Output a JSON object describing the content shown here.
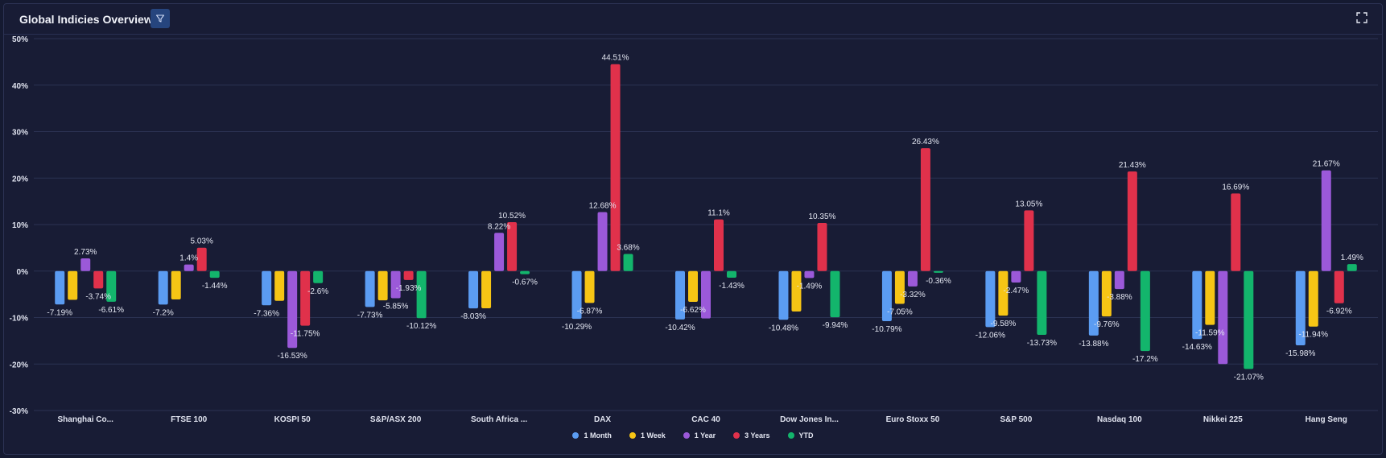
{
  "header": {
    "title": "Global Indicies Overview",
    "filter_icon": "filter-icon",
    "expand_icon": "expand-icon"
  },
  "chart_data": {
    "type": "bar",
    "categories": [
      "Shanghai Co...",
      "FTSE 100",
      "KOSPI 50",
      "S&P/ASX 200",
      "South Africa ...",
      "DAX",
      "CAC 40",
      "Dow Jones In...",
      "Euro Stoxx 50",
      "S&P 500",
      "Nasdaq 100",
      "Nikkei 225",
      "Hang Seng"
    ],
    "ylim": [
      -30,
      50
    ],
    "yticks": [
      "-30%",
      "-20%",
      "-10%",
      "0%",
      "10%",
      "20%",
      "30%",
      "40%",
      "50%"
    ],
    "grid": true,
    "legend_position": "bottom-center",
    "series": [
      {
        "name": "1 Month",
        "color": "#5b9cf2",
        "values": [
          -7.19,
          -7.2,
          -7.36,
          -7.73,
          -8.03,
          -10.29,
          -10.42,
          -10.48,
          -10.79,
          -12.06,
          -13.88,
          -14.63,
          -15.98
        ]
      },
      {
        "name": "1 Week",
        "color": "#f6c515",
        "values": [
          -6.2,
          -6.1,
          -6.4,
          -6.3,
          -8.0,
          -6.87,
          -6.62,
          -8.7,
          -7.05,
          -9.58,
          -9.76,
          -11.59,
          -11.94
        ]
      },
      {
        "name": "1 Year",
        "color": "#9b59d9",
        "values": [
          2.73,
          1.4,
          -16.53,
          -5.85,
          8.22,
          12.68,
          -10.2,
          -1.49,
          -3.32,
          -2.47,
          -3.88,
          -20.0,
          21.67
        ]
      },
      {
        "name": "3 Years",
        "color": "#e0314b",
        "values": [
          -3.74,
          5.03,
          -11.75,
          -1.93,
          10.52,
          44.51,
          11.1,
          10.35,
          26.43,
          13.05,
          21.43,
          16.69,
          -6.92
        ]
      },
      {
        "name": "YTD",
        "color": "#13b56c",
        "values": [
          -6.61,
          -1.44,
          -2.6,
          -10.12,
          -0.67,
          3.68,
          -1.43,
          -9.94,
          -0.36,
          -13.73,
          -17.2,
          -21.07,
          1.49
        ]
      }
    ],
    "labels": [
      {
        "category": 0,
        "series": 0,
        "text": "-7.19%"
      },
      {
        "category": 0,
        "series": 2,
        "text": "2.73%"
      },
      {
        "category": 0,
        "series": 3,
        "text": "-3.74%"
      },
      {
        "category": 0,
        "series": 4,
        "text": "-6.61%"
      },
      {
        "category": 1,
        "series": 0,
        "text": "-7.2%"
      },
      {
        "category": 1,
        "series": 2,
        "text": "1.4%"
      },
      {
        "category": 1,
        "series": 3,
        "text": "5.03%"
      },
      {
        "category": 1,
        "series": 4,
        "text": "-1.44%"
      },
      {
        "category": 2,
        "series": 0,
        "text": "-7.36%"
      },
      {
        "category": 2,
        "series": 2,
        "text": "-16.53%"
      },
      {
        "category": 2,
        "series": 3,
        "text": "-11.75%"
      },
      {
        "category": 2,
        "series": 4,
        "text": "-2.6%"
      },
      {
        "category": 3,
        "series": 0,
        "text": "-7.73%"
      },
      {
        "category": 3,
        "series": 2,
        "text": "-5.85%"
      },
      {
        "category": 3,
        "series": 3,
        "text": "-1.93%"
      },
      {
        "category": 3,
        "series": 4,
        "text": "-10.12%"
      },
      {
        "category": 4,
        "series": 0,
        "text": "-8.03%"
      },
      {
        "category": 4,
        "series": 2,
        "text": "8.22%"
      },
      {
        "category": 4,
        "series": 3,
        "text": "10.52%"
      },
      {
        "category": 4,
        "series": 4,
        "text": "-0.67%"
      },
      {
        "category": 5,
        "series": 0,
        "text": "-10.29%"
      },
      {
        "category": 5,
        "series": 1,
        "text": "-6.87%"
      },
      {
        "category": 5,
        "series": 2,
        "text": "12.68%"
      },
      {
        "category": 5,
        "series": 3,
        "text": "44.51%"
      },
      {
        "category": 5,
        "series": 4,
        "text": "3.68%"
      },
      {
        "category": 6,
        "series": 0,
        "text": "-10.42%"
      },
      {
        "category": 6,
        "series": 1,
        "text": "-6.62%"
      },
      {
        "category": 6,
        "series": 3,
        "text": "11.1%"
      },
      {
        "category": 6,
        "series": 4,
        "text": "-1.43%"
      },
      {
        "category": 7,
        "series": 0,
        "text": "-10.48%"
      },
      {
        "category": 7,
        "series": 2,
        "text": "-1.49%"
      },
      {
        "category": 7,
        "series": 3,
        "text": "10.35%"
      },
      {
        "category": 7,
        "series": 4,
        "text": "-9.94%"
      },
      {
        "category": 8,
        "series": 0,
        "text": "-10.79%"
      },
      {
        "category": 8,
        "series": 1,
        "text": "-7.05%"
      },
      {
        "category": 8,
        "series": 2,
        "text": "-3.32%"
      },
      {
        "category": 8,
        "series": 3,
        "text": "26.43%"
      },
      {
        "category": 8,
        "series": 4,
        "text": "-0.36%"
      },
      {
        "category": 9,
        "series": 0,
        "text": "-12.06%"
      },
      {
        "category": 9,
        "series": 1,
        "text": "-9.58%"
      },
      {
        "category": 9,
        "series": 2,
        "text": "-2.47%"
      },
      {
        "category": 9,
        "series": 3,
        "text": "13.05%"
      },
      {
        "category": 9,
        "series": 4,
        "text": "-13.73%"
      },
      {
        "category": 10,
        "series": 0,
        "text": "-13.88%"
      },
      {
        "category": 10,
        "series": 1,
        "text": "-9.76%"
      },
      {
        "category": 10,
        "series": 2,
        "text": "-3.88%"
      },
      {
        "category": 10,
        "series": 3,
        "text": "21.43%"
      },
      {
        "category": 10,
        "series": 4,
        "text": "-17.2%"
      },
      {
        "category": 11,
        "series": 0,
        "text": "-14.63%"
      },
      {
        "category": 11,
        "series": 1,
        "text": "-11.59%"
      },
      {
        "category": 11,
        "series": 3,
        "text": "16.69%"
      },
      {
        "category": 11,
        "series": 4,
        "text": "-21.07%"
      },
      {
        "category": 12,
        "series": 0,
        "text": "-15.98%"
      },
      {
        "category": 12,
        "series": 1,
        "text": "-11.94%"
      },
      {
        "category": 12,
        "series": 2,
        "text": "21.67%"
      },
      {
        "category": 12,
        "series": 3,
        "text": "-6.92%"
      },
      {
        "category": 12,
        "series": 4,
        "text": "1.49%"
      }
    ]
  }
}
